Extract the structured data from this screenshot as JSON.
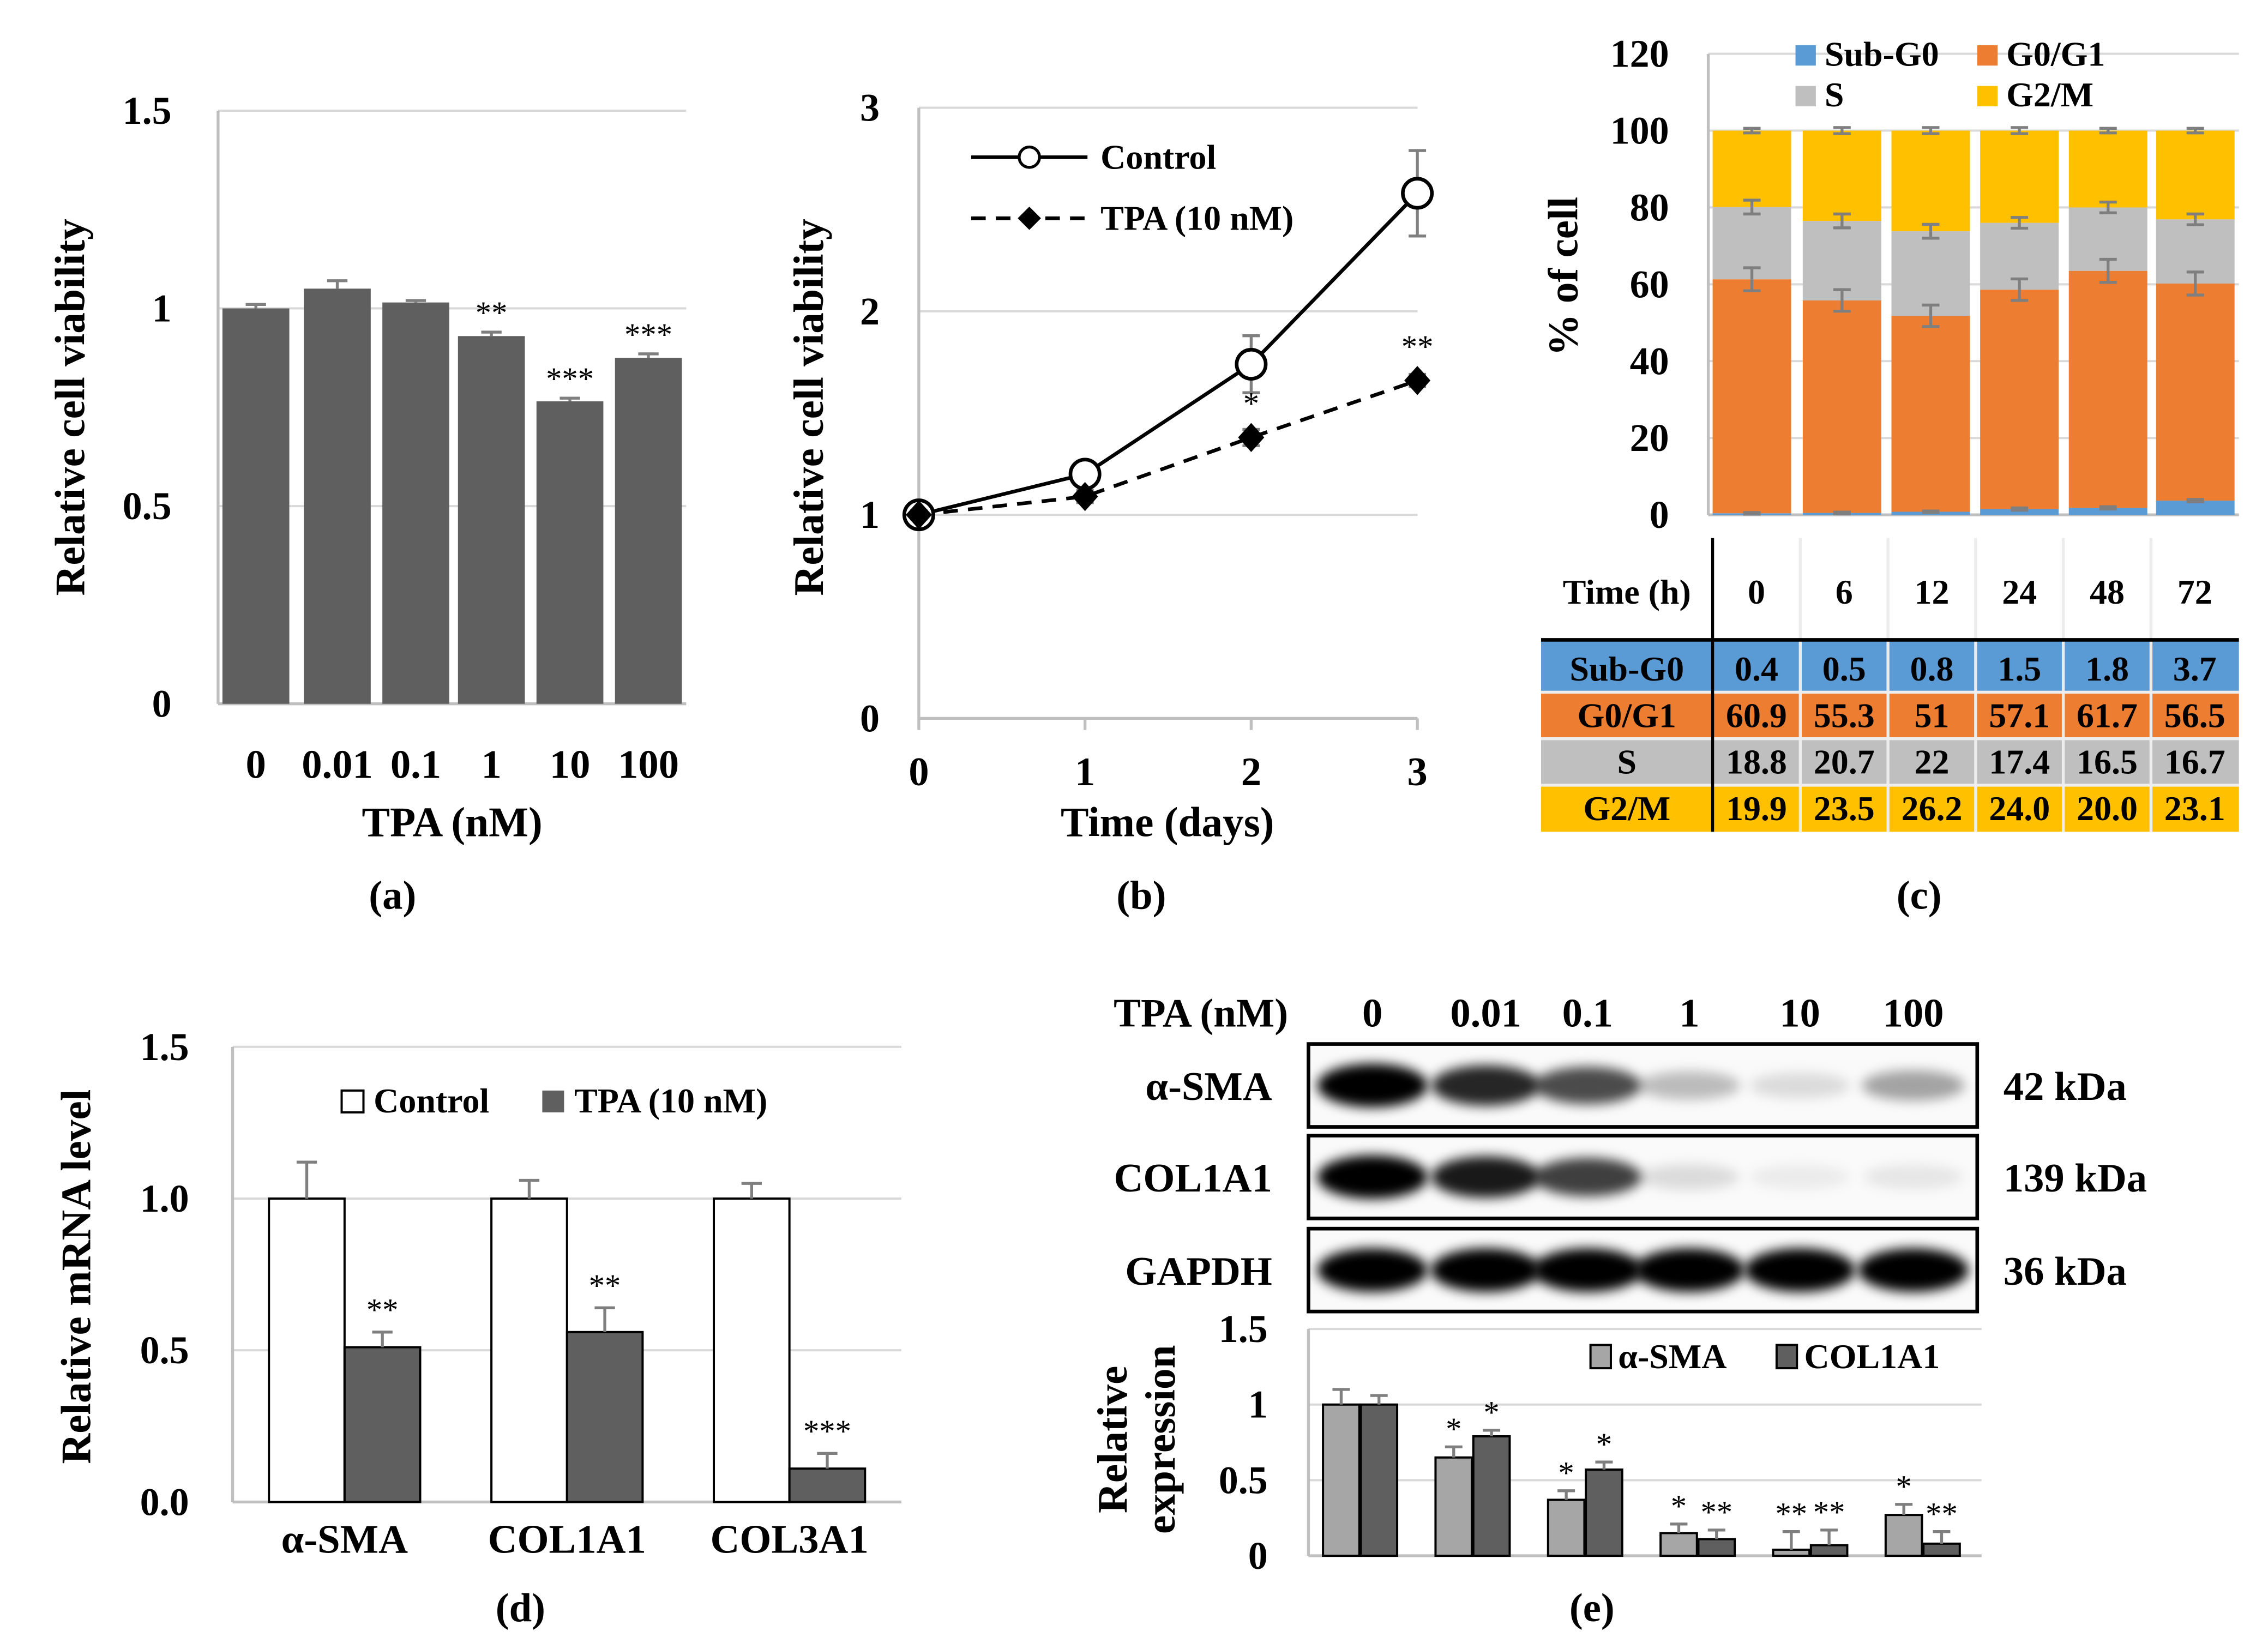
{
  "chart_data": [
    {
      "panel": "(a)",
      "type": "bar",
      "title": "",
      "xlabel": "TPA (nM)",
      "ylabel": "Relative cell viability",
      "ylim": [
        0,
        1.5
      ],
      "yticks": [
        "0",
        "0.5",
        "1",
        "1.5"
      ],
      "categories": [
        "0",
        "0.01",
        "0.1",
        "1",
        "10",
        "100"
      ],
      "values": [
        1.0,
        1.05,
        1.015,
        0.93,
        0.765,
        0.875
      ],
      "errors": [
        0.01,
        0.02,
        0.005,
        0.01,
        0.008,
        0.01
      ],
      "significance": [
        "",
        "",
        "",
        "**",
        "***",
        "***"
      ],
      "color": "#5f5f5f",
      "grid": true
    },
    {
      "panel": "(b)",
      "type": "line",
      "xlabel": "Time (days)",
      "ylabel": "Relative cell viability",
      "ylim": [
        0,
        3
      ],
      "yticks": [
        "0",
        "1",
        "2",
        "3"
      ],
      "x": [
        0,
        1,
        2,
        3
      ],
      "xticks": [
        "0",
        "1",
        "2",
        "3"
      ],
      "series": [
        {
          "name": "Control",
          "values": [
            1.0,
            1.2,
            1.74,
            2.58
          ],
          "errors": [
            0.02,
            0.05,
            0.14,
            0.21
          ],
          "marker": "open-circle",
          "line": "solid",
          "significance": [
            "",
            "",
            "",
            ""
          ]
        },
        {
          "name": "TPA (10 nM)",
          "values": [
            1.0,
            1.09,
            1.38,
            1.66
          ],
          "errors": [
            0.02,
            0.03,
            0.04,
            0.03
          ],
          "marker": "diamond",
          "line": "dashed",
          "significance": [
            "",
            "",
            "*",
            "**"
          ]
        }
      ],
      "legend": "top-left",
      "grid": true
    },
    {
      "panel": "(c)",
      "type": "bar",
      "stacked": true,
      "ylabel": "% of cell",
      "ylim": [
        0,
        120
      ],
      "yticks": [
        "0",
        "20",
        "40",
        "60",
        "80",
        "100",
        "120"
      ],
      "table_header": "Time (h)",
      "categories": [
        "0",
        "6",
        "12",
        "24",
        "48",
        "72"
      ],
      "series": [
        {
          "name": "Sub-G0",
          "color": "#5b9bd5",
          "values": [
            "0.4",
            "0.5",
            "0.8",
            "1.5",
            "1.8",
            "3.7"
          ],
          "errors": [
            0.2,
            0.2,
            0.2,
            0.3,
            0.3,
            0.3
          ]
        },
        {
          "name": "G0/G1",
          "color": "#ed7d31",
          "values": [
            "60.9",
            "55.3",
            "51",
            "57.1",
            "61.7",
            "56.5"
          ],
          "errors": [
            3.0,
            2.8,
            2.8,
            2.8,
            3.0,
            3.0
          ]
        },
        {
          "name": "S",
          "color": "#bfbfbf",
          "values": [
            "18.8",
            "20.7",
            "22",
            "17.4",
            "16.5",
            "16.7"
          ],
          "errors": [
            1.8,
            1.8,
            1.8,
            1.4,
            1.4,
            1.4
          ]
        },
        {
          "name": "G2/M",
          "color": "#ffc000",
          "values": [
            "19.9",
            "23.5",
            "26.2",
            "24.0",
            "20.0",
            "23.1"
          ],
          "errors": [
            0.6,
            0.8,
            0.8,
            0.8,
            0.6,
            0.6
          ]
        }
      ],
      "legend": "top",
      "grid": true
    },
    {
      "panel": "(d)",
      "type": "bar",
      "ylabel": "Relative mRNA level",
      "ylim": [
        0,
        1.5
      ],
      "yticks": [
        "0.0",
        "0.5",
        "1.0",
        "1.5"
      ],
      "categories": [
        "α-SMA",
        "COL1A1",
        "COL3A1"
      ],
      "series": [
        {
          "name": "Control",
          "color": "#ffffff",
          "values": [
            1.0,
            1.0,
            1.0
          ],
          "errors": [
            0.12,
            0.06,
            0.05
          ],
          "significance": [
            "",
            "",
            ""
          ]
        },
        {
          "name": "TPA (10 nM)",
          "color": "#5f5f5f",
          "values": [
            0.51,
            0.56,
            0.11
          ],
          "errors": [
            0.05,
            0.08,
            0.05
          ],
          "significance": [
            "**",
            "**",
            "***"
          ]
        }
      ],
      "legend": "top",
      "grid": true
    },
    {
      "panel": "(e)",
      "type": "bar",
      "ylabel": "Relative expression",
      "ylabel_lines": [
        "Relative",
        "expression"
      ],
      "ylim": [
        0,
        1.5
      ],
      "yticks": [
        "0",
        "0.5",
        "1",
        "1.5"
      ],
      "categories": [
        "0",
        "0.01",
        "0.1",
        "1",
        "10",
        "100"
      ],
      "series": [
        {
          "name": "α-SMA",
          "color": "#a6a6a6",
          "values": [
            1.0,
            0.65,
            0.37,
            0.15,
            0.04,
            0.27
          ],
          "errors": [
            0.1,
            0.07,
            0.06,
            0.06,
            0.12,
            0.07
          ],
          "significance": [
            "",
            "*",
            "*",
            "*",
            "**",
            "*"
          ]
        },
        {
          "name": "COL1A1",
          "color": "#5f5f5f",
          "values": [
            1.0,
            0.79,
            0.57,
            0.11,
            0.07,
            0.08
          ],
          "errors": [
            0.06,
            0.04,
            0.05,
            0.06,
            0.1,
            0.08
          ],
          "significance": [
            "",
            "*",
            "*",
            "**",
            "**",
            "**"
          ]
        }
      ],
      "legend": "top-right",
      "grid": true
    }
  ],
  "blot": {
    "header_label": "TPA (nM)",
    "lanes": [
      "0",
      "0.01",
      "0.1",
      "1",
      "10",
      "100"
    ],
    "rows": [
      {
        "label": "α-SMA",
        "size": "42 kDa",
        "band_intensity": [
          1.0,
          0.85,
          0.7,
          0.25,
          0.12,
          0.35
        ]
      },
      {
        "label": "COL1A1",
        "size": "139 kDa",
        "band_intensity": [
          1.0,
          0.9,
          0.75,
          0.12,
          0.06,
          0.08
        ]
      },
      {
        "label": "GAPDH",
        "size": "36 kDa",
        "band_intensity": [
          1.0,
          1.0,
          1.0,
          1.0,
          1.0,
          1.0
        ]
      }
    ]
  },
  "panel_labels": [
    "(a)",
    "(b)",
    "(c)",
    "(d)",
    "(e)"
  ]
}
